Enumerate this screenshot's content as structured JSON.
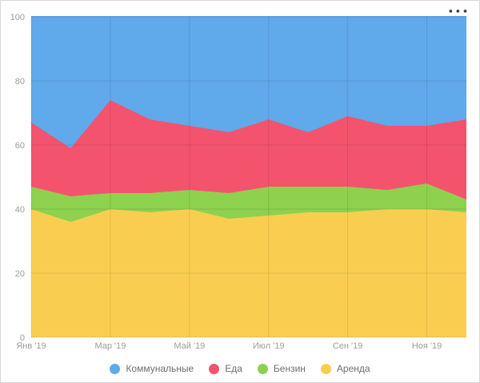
{
  "widget": {
    "menu_label": "•••"
  },
  "chart_data": {
    "type": "area",
    "stacking": "percent",
    "title": "",
    "xlabel": "",
    "ylabel": "",
    "ylim": [
      0,
      100
    ],
    "y_ticks": [
      0,
      20,
      40,
      60,
      80,
      100
    ],
    "n_points": 12,
    "x_tick_labels": [
      "Янв '19",
      "Мар '19",
      "Май '19",
      "Июл '19",
      "Сен '19",
      "Ноя '19"
    ],
    "grid": true,
    "legend_position": "bottom",
    "series": [
      {
        "name": "Аренда",
        "color": "#F9CE50",
        "values": [
          40,
          36,
          40,
          39,
          40,
          37,
          38,
          39,
          39,
          40,
          40,
          39
        ]
      },
      {
        "name": "Бензин",
        "color": "#8ED14E",
        "values": [
          7,
          8,
          5,
          6,
          6,
          8,
          9,
          8,
          8,
          6,
          8,
          4
        ]
      },
      {
        "name": "Еда",
        "color": "#F4536E",
        "values": [
          20,
          15,
          29,
          23,
          20,
          19,
          21,
          17,
          22,
          20,
          18,
          25
        ]
      },
      {
        "name": "Коммунальные",
        "color": "#60A9EA",
        "values": [
          33,
          41,
          26,
          32,
          34,
          36,
          32,
          36,
          31,
          34,
          34,
          32
        ]
      }
    ],
    "legend_order": [
      "Коммунальные",
      "Еда",
      "Бензин",
      "Аренда"
    ]
  }
}
